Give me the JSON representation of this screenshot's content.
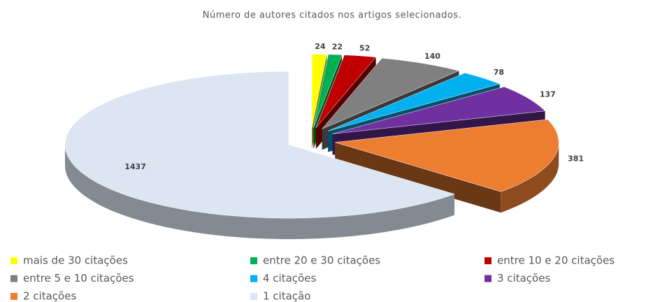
{
  "chart_data": {
    "type": "pie3d",
    "title": "Número de autores citados nos artigos selecionados.",
    "categories": [
      "mais de 30 citações",
      "entre 20 e 30 citações",
      "entre 10 e 20 citações",
      "entre 5 e 10 citações",
      "4 citações",
      "3 citações",
      "2 citações",
      "1 citação"
    ],
    "values": [
      24,
      22,
      52,
      140,
      78,
      137,
      381,
      1437
    ],
    "colors": [
      "#ffff00",
      "#00b050",
      "#c00000",
      "#808080",
      "#00b0f0",
      "#7030a0",
      "#ed7d31",
      "#dce6f2"
    ],
    "legend": "bottom"
  }
}
